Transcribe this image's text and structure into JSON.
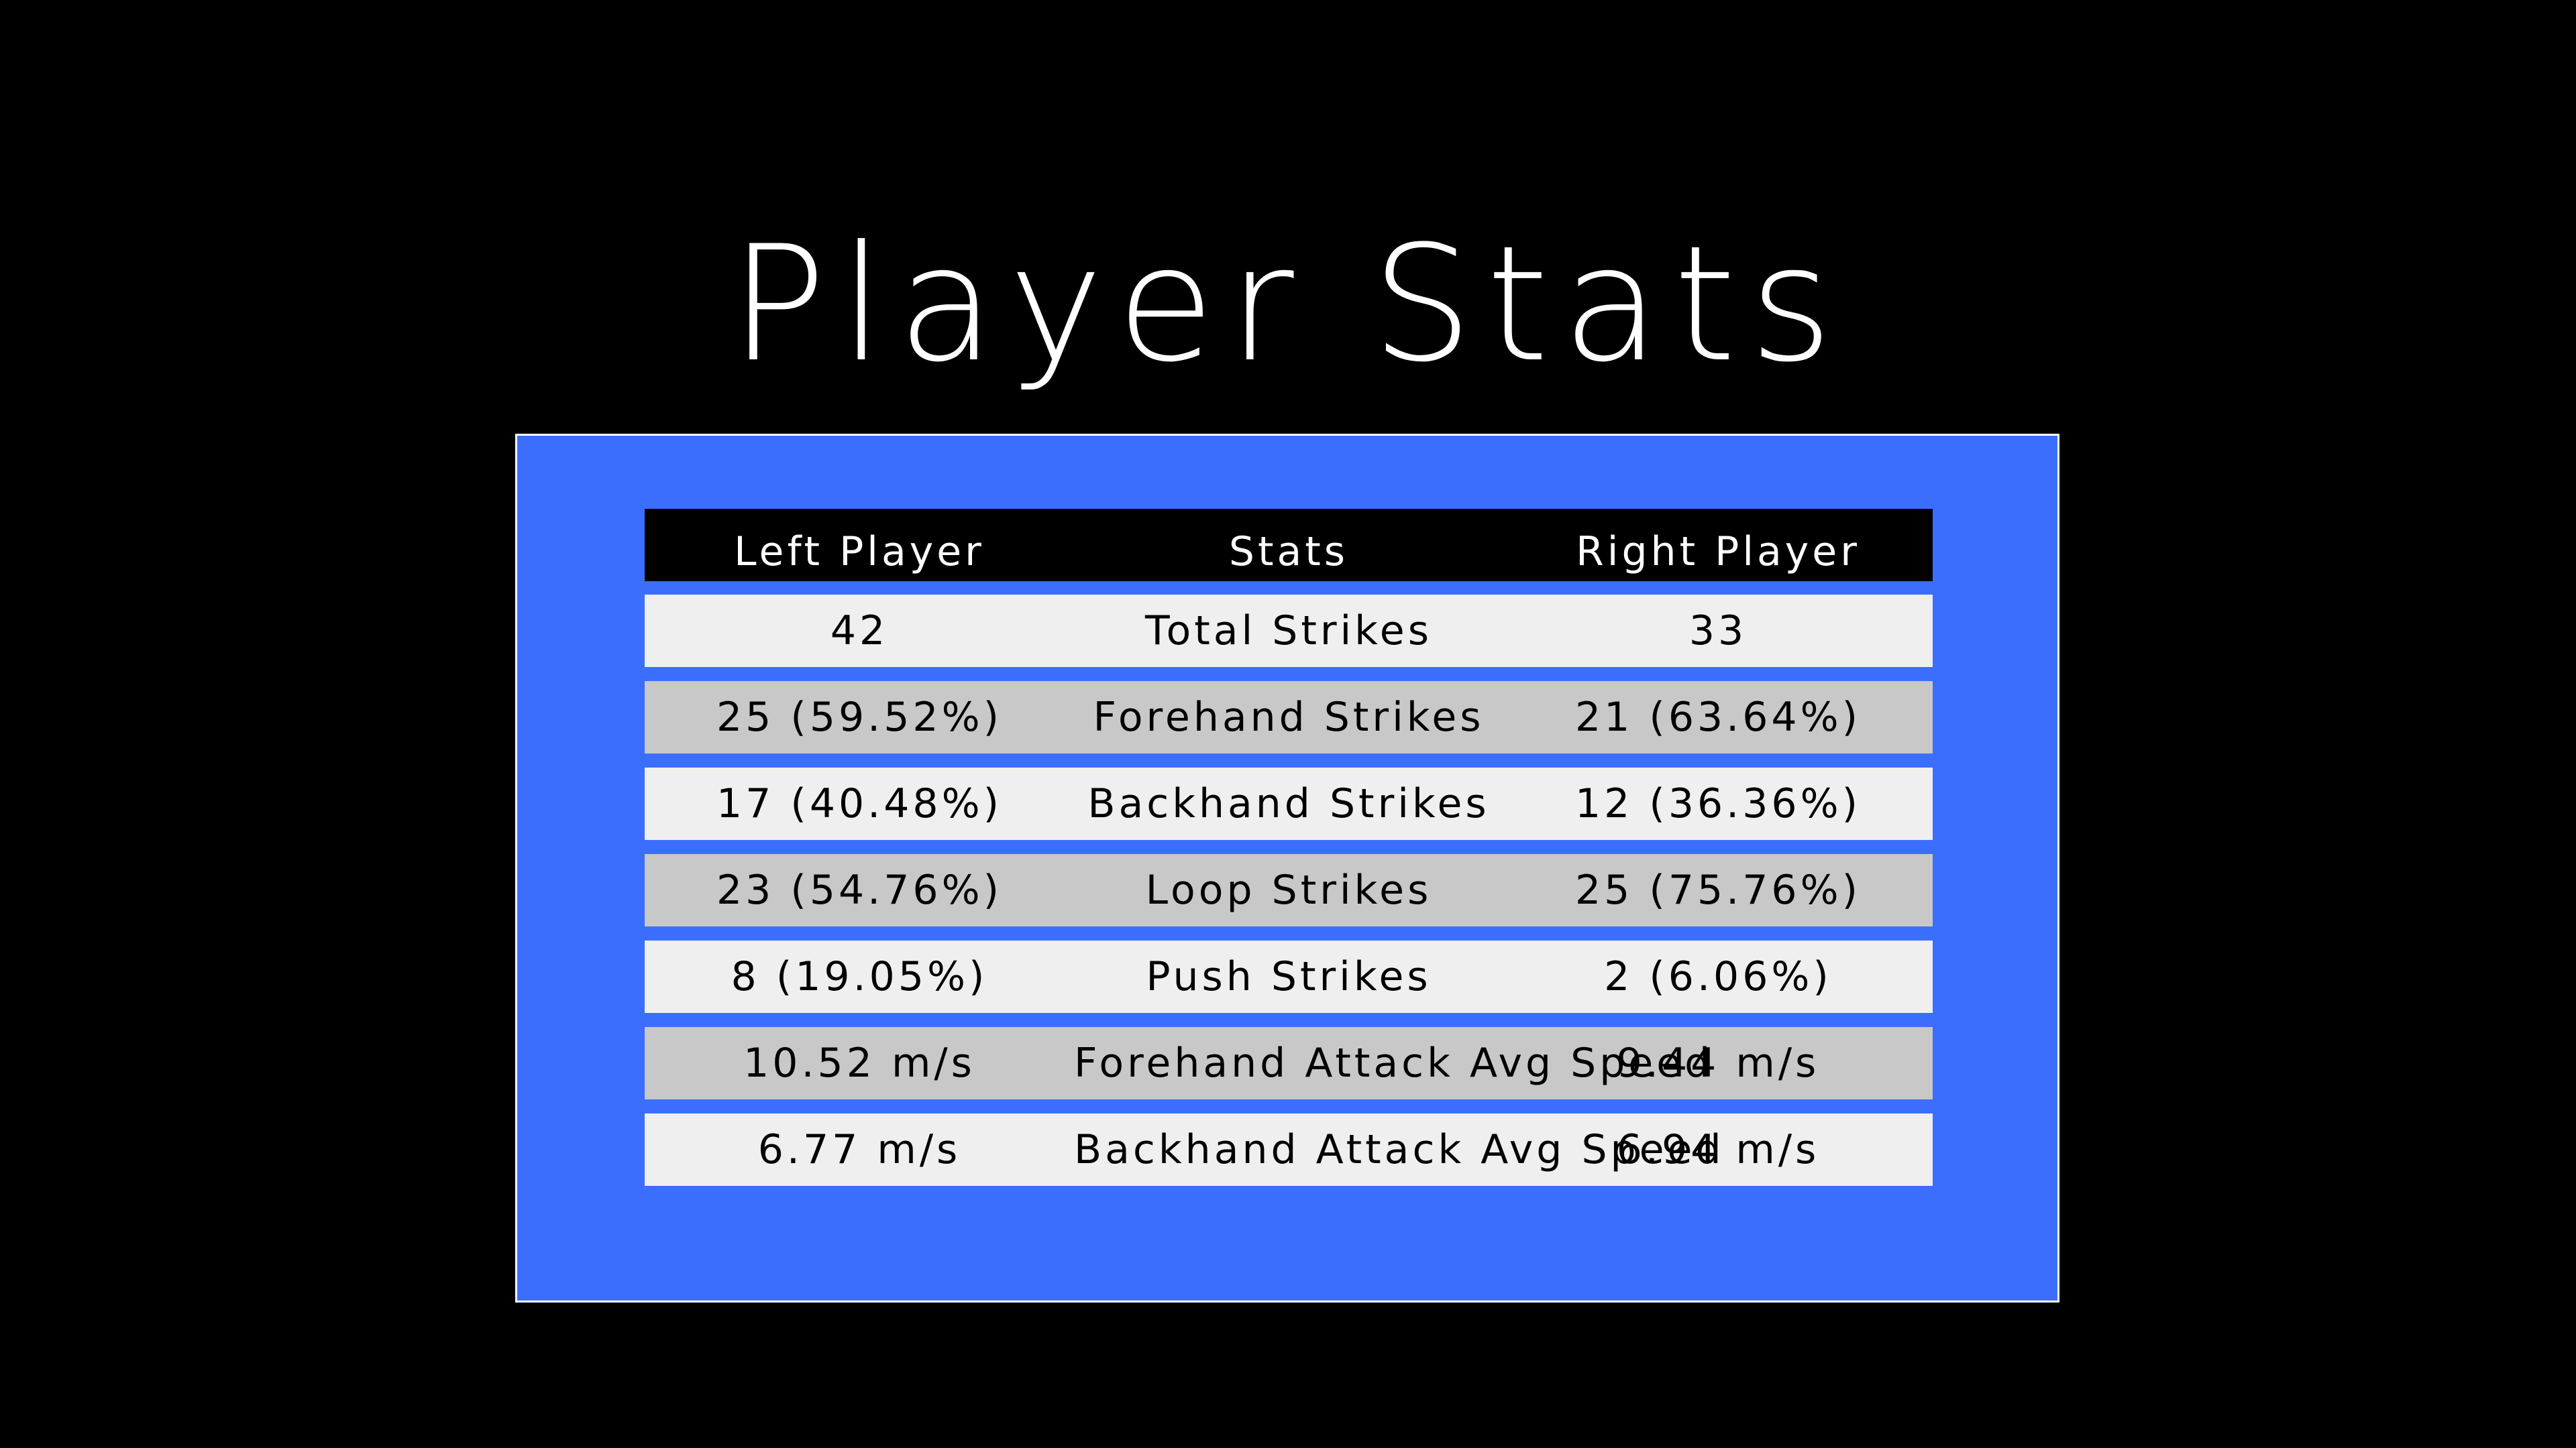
{
  "title": "Player Stats",
  "colors": {
    "background": "#000000",
    "panel": "#3c6efd",
    "panel_border": "#ffffff",
    "header_row": "#000000",
    "row_light": "#efefef",
    "row_dark": "#c8c8c8"
  },
  "table": {
    "headers": {
      "left": "Left Player",
      "stat": "Stats",
      "right": "Right Player"
    },
    "rows": [
      {
        "left": "42",
        "stat": "Total Strikes",
        "right": "33"
      },
      {
        "left": "25 (59.52%)",
        "stat": "Forehand Strikes",
        "right": "21 (63.64%)"
      },
      {
        "left": "17 (40.48%)",
        "stat": "Backhand Strikes",
        "right": "12 (36.36%)"
      },
      {
        "left": "23 (54.76%)",
        "stat": "Loop Strikes",
        "right": "25 (75.76%)"
      },
      {
        "left": "8 (19.05%)",
        "stat": "Push Strikes",
        "right": "2 (6.06%)"
      },
      {
        "left": "10.52 m/s",
        "stat": "Forehand Attack Avg Speed",
        "right": "9.44 m/s"
      },
      {
        "left": "6.77 m/s",
        "stat": "Backhand Attack Avg Speed",
        "right": "6.94 m/s"
      }
    ]
  }
}
